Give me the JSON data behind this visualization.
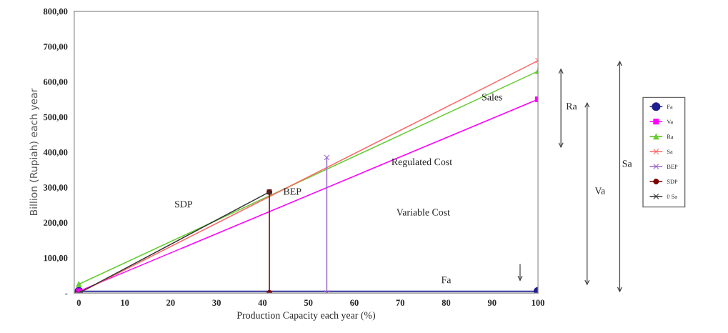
{
  "chart_data": {
    "type": "line",
    "xlabel": "Production Capacity each year (%)",
    "ylabel": "Billion (Rupiah) each year",
    "xlim": [
      -1,
      100
    ],
    "xticks": [
      0,
      10,
      20,
      30,
      40,
      50,
      60,
      70,
      80,
      90,
      100
    ],
    "ylim": [
      0,
      800
    ],
    "yticks": [
      {
        "value": 0,
        "label": "-"
      },
      {
        "value": 100,
        "label": "100,00"
      },
      {
        "value": 200,
        "label": "200,00"
      },
      {
        "value": 300,
        "label": "300,00"
      },
      {
        "value": 400,
        "label": "400,00"
      },
      {
        "value": 500,
        "label": "500,00"
      },
      {
        "value": 600,
        "label": "600,00"
      },
      {
        "value": 700,
        "label": "700,00"
      },
      {
        "value": 800,
        "label": "800,00"
      }
    ],
    "grid": false,
    "legend": "right",
    "series": [
      {
        "name": "Fa",
        "color": "#1f1f8f",
        "marker": "circle",
        "x": [
          0,
          100
        ],
        "values": [
          5,
          5
        ]
      },
      {
        "name": "Va",
        "color": "#ff00ff",
        "marker": "square",
        "x": [
          0,
          100
        ],
        "values": [
          5,
          550
        ]
      },
      {
        "name": "Ra",
        "color": "#66cc33",
        "marker": "triangle",
        "x": [
          0,
          100
        ],
        "values": [
          25,
          630
        ]
      },
      {
        "name": "Sa",
        "color": "#ff6666",
        "marker": "cross",
        "x": [
          0,
          100
        ],
        "values": [
          0,
          660
        ]
      },
      {
        "name": "BEP",
        "color": "#9966cc",
        "marker": "cross",
        "x": [
          54,
          54
        ],
        "values": [
          0,
          385
        ]
      },
      {
        "name": "SDP",
        "color": "#800000",
        "marker": "circle",
        "x": [
          41.5,
          41.5
        ],
        "values": [
          0,
          287
        ]
      },
      {
        "name": "0 Sa",
        "color": "#333333",
        "marker": "cross",
        "x": [
          0,
          41.5
        ],
        "values": [
          0,
          287
        ]
      }
    ],
    "annotations": [
      "SDP",
      "BEP",
      "Sales",
      "Regulated Cost",
      "Variable Cost",
      "Fa",
      "Ra",
      "Va",
      "Sa"
    ]
  }
}
